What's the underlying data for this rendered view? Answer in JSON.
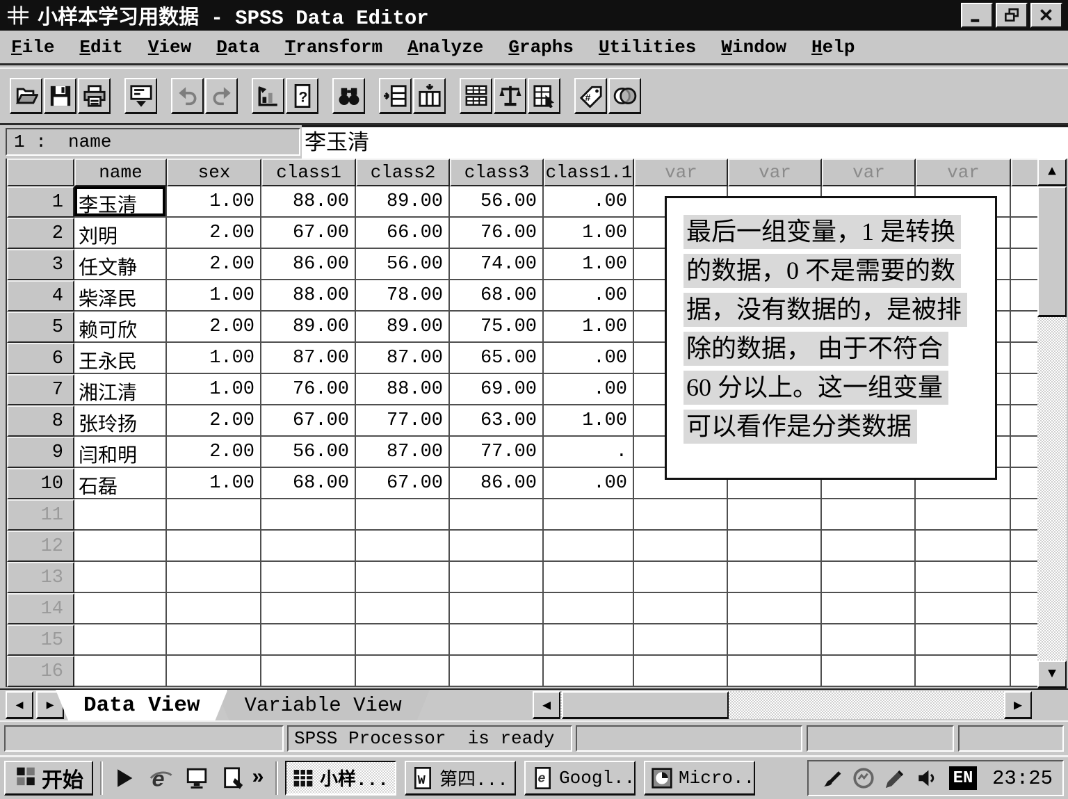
{
  "titlebar": {
    "title": "小样本学习用数据 - SPSS Data Editor",
    "app_icon": "spss-datasheet",
    "controls": [
      "minimize",
      "restore",
      "close"
    ]
  },
  "menu": {
    "items": [
      "File",
      "Edit",
      "View",
      "Data",
      "Transform",
      "Analyze",
      "Graphs",
      "Utilities",
      "Window",
      "Help"
    ]
  },
  "toolbar": {
    "groups": [
      [
        "open-file",
        "save-file",
        "print"
      ],
      [
        "dialog-recall"
      ],
      [
        "undo",
        "redo"
      ],
      [
        "goto-chart",
        "variables"
      ],
      [
        "find"
      ],
      [
        "insert-cases",
        "insert-variable"
      ],
      [
        "split-file",
        "weight-cases",
        "select-cases"
      ],
      [
        "value-labels",
        "use-sets"
      ]
    ],
    "disabled": [
      "undo",
      "redo"
    ]
  },
  "cell_editor": {
    "reference": "1 :  name",
    "value": "李玉清"
  },
  "grid": {
    "columns": [
      "name",
      "sex",
      "class1",
      "class2",
      "class3",
      "class1.1",
      "var",
      "var",
      "var",
      "var"
    ],
    "rows": [
      {
        "n": "1",
        "cells": [
          "李玉清",
          "1.00",
          "88.00",
          "89.00",
          "56.00",
          ".00"
        ]
      },
      {
        "n": "2",
        "cells": [
          "刘明",
          "2.00",
          "67.00",
          "66.00",
          "76.00",
          "1.00"
        ]
      },
      {
        "n": "3",
        "cells": [
          "任文静",
          "2.00",
          "86.00",
          "56.00",
          "74.00",
          "1.00"
        ]
      },
      {
        "n": "4",
        "cells": [
          "柴泽民",
          "1.00",
          "88.00",
          "78.00",
          "68.00",
          ".00"
        ]
      },
      {
        "n": "5",
        "cells": [
          "赖可欣",
          "2.00",
          "89.00",
          "89.00",
          "75.00",
          "1.00"
        ]
      },
      {
        "n": "6",
        "cells": [
          "王永民",
          "1.00",
          "87.00",
          "87.00",
          "65.00",
          ".00"
        ]
      },
      {
        "n": "7",
        "cells": [
          "湘江清",
          "1.00",
          "76.00",
          "88.00",
          "69.00",
          ".00"
        ]
      },
      {
        "n": "8",
        "cells": [
          "张玲扬",
          "2.00",
          "67.00",
          "77.00",
          "63.00",
          "1.00"
        ]
      },
      {
        "n": "9",
        "cells": [
          "闫和明",
          "2.00",
          "56.00",
          "87.00",
          "77.00",
          "."
        ]
      },
      {
        "n": "10",
        "cells": [
          "石磊",
          "1.00",
          "68.00",
          "67.00",
          "86.00",
          ".00"
        ]
      },
      {
        "n": "11",
        "cells": [
          "",
          "",
          "",
          "",
          "",
          ""
        ]
      },
      {
        "n": "12",
        "cells": [
          "",
          "",
          "",
          "",
          "",
          ""
        ]
      },
      {
        "n": "13",
        "cells": [
          "",
          "",
          "",
          "",
          "",
          ""
        ]
      },
      {
        "n": "14",
        "cells": [
          "",
          "",
          "",
          "",
          "",
          ""
        ]
      },
      {
        "n": "15",
        "cells": [
          "",
          "",
          "",
          "",
          "",
          ""
        ]
      },
      {
        "n": "16",
        "cells": [
          "",
          "",
          "",
          "",
          "",
          ""
        ]
      }
    ],
    "selected_cell": {
      "row": 1,
      "column": "name"
    }
  },
  "annotation": {
    "lines": [
      "最后一组变量，1 是转换",
      "的数据，0 不是需要的数",
      "据，没有数据的，是被排",
      "除的数据， 由于不符合",
      "60 分以上。这一组变量",
      "可以看作是分类数据"
    ]
  },
  "tabs": {
    "items": [
      {
        "label": "Data View",
        "active": true
      },
      {
        "label": "Variable View",
        "active": false
      }
    ]
  },
  "statusbar": {
    "message": "SPSS Processor  is ready"
  },
  "taskbar": {
    "start_label": "开始",
    "quicklaunch": [
      "media-play",
      "internet-explorer",
      "show-desktop",
      "edit-document"
    ],
    "overflow_chevron": "»",
    "buttons": [
      {
        "icon": "spss-datasheet",
        "label": "小样...",
        "active": true
      },
      {
        "icon": "word-doc",
        "label": "第四...",
        "active": false
      },
      {
        "icon": "ie-doc",
        "label": "Googl...",
        "active": false
      },
      {
        "icon": "micro-app",
        "label": "Micro...",
        "active": false
      }
    ],
    "tray_icons": [
      "pen-tablet",
      "network-status",
      "graphics-pen",
      "volume"
    ],
    "language_indicator": "EN",
    "clock": "23:25"
  },
  "colors": {
    "titlebar_bg": "#101010",
    "window_silver": "#c8c8c8",
    "var_header_text": "#8a8a8a",
    "annotation_highlight": "#d9d9d9",
    "language_badge_bg": "#000000"
  }
}
